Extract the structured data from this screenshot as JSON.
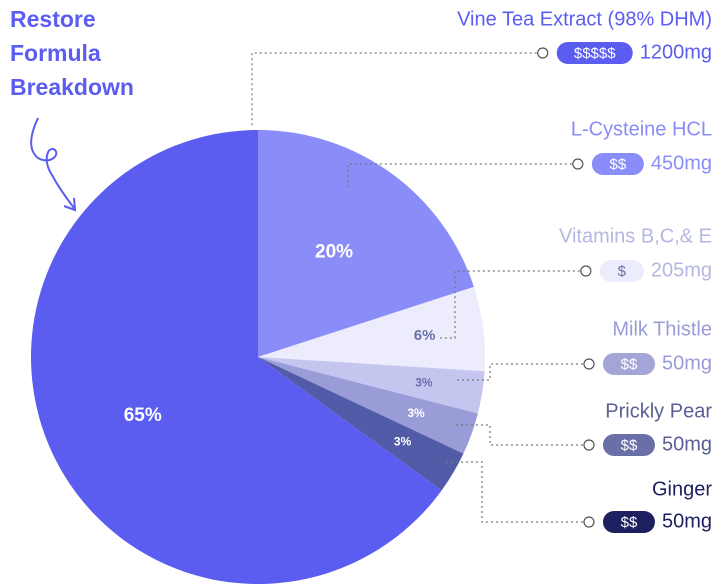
{
  "chart_data": {
    "type": "pie",
    "title": "Restore Formula Breakdown",
    "categories": [
      "Vine Tea Extract (98% DHM)",
      "L-Cysteine HCL",
      "Vitamins B,C,& E",
      "Milk Thistle",
      "Prickly Pear",
      "Ginger"
    ],
    "values": [
      65,
      20,
      6,
      3,
      3,
      3
    ],
    "value_labels": [
      "65%",
      "20%",
      "6%",
      "3%",
      "3%",
      "3%"
    ],
    "colors": [
      "#5b5cf0",
      "#8a8cf8",
      "#ececfc",
      "#c5c6f0",
      "#9a9cd8",
      "#525ba8"
    ],
    "label_colors": [
      "#5b5cf0",
      "#8a8cf8",
      "#b4b7e2",
      "#9a9cd8",
      "#5a5f96",
      "#1d1f5e"
    ],
    "price_colors": [
      "#5b5cf0",
      "#8a8cf8",
      "#ececfc",
      "#a3a5d6",
      "#6b6fa8",
      "#1d1f5e"
    ],
    "prices": [
      "$$$$$",
      "$$",
      "$",
      "$$",
      "$$",
      "$$"
    ],
    "amounts": [
      "1200mg",
      "450mg",
      "205mg",
      "50mg",
      "50mg",
      "50mg"
    ]
  }
}
